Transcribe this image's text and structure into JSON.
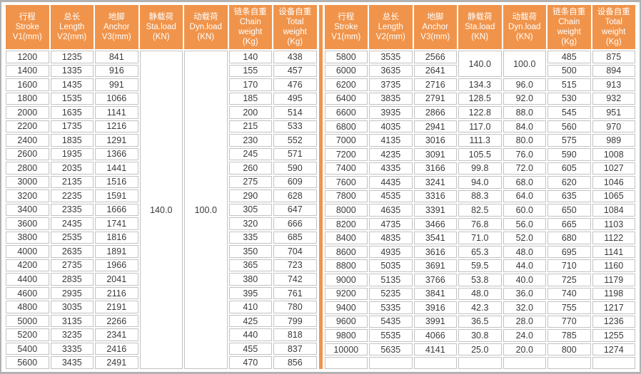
{
  "colors": {
    "header_orange": "#F0944B",
    "divider_orange": "#F0944B",
    "frame_border_gray": "#B2B2B2",
    "cell_border_gray": "#C2C2C2",
    "cell_background": "#FFFFFF",
    "data_text": "#3A3A3A",
    "header_text": "#FFFFFF"
  },
  "chart_data": {
    "type": "table",
    "header_columns": [
      {
        "lines": [
          "行程",
          "Stroke",
          "V1(mm)"
        ]
      },
      {
        "lines": [
          "总长",
          "Length",
          "V2(mm)"
        ]
      },
      {
        "lines": [
          "地脚",
          "Anchor",
          "V3(mm)"
        ]
      },
      {
        "lines": [
          "静载荷",
          "Sta.load",
          "(KN)"
        ]
      },
      {
        "lines": [
          "动载荷",
          "Dyn.load",
          "(KN)"
        ]
      },
      {
        "lines": [
          "链条自重",
          "Chain",
          "weight",
          "(Kg)"
        ]
      },
      {
        "lines": [
          "设备自重",
          "Total",
          "weight",
          "(Kg)"
        ]
      }
    ],
    "left_table": {
      "merged": {
        "sta_load": "140.0",
        "dyn_load": "100.0",
        "rowspan": 23
      },
      "rows": [
        [
          "1200",
          "1235",
          "841",
          "@sta",
          "@dyn",
          "140",
          "438"
        ],
        [
          "1400",
          "1335",
          "916",
          "@skip",
          "@skip",
          "155",
          "457"
        ],
        [
          "1600",
          "1435",
          "991",
          "@skip",
          "@skip",
          "170",
          "476"
        ],
        [
          "1800",
          "1535",
          "1066",
          "@skip",
          "@skip",
          "185",
          "495"
        ],
        [
          "2000",
          "1635",
          "1141",
          "@skip",
          "@skip",
          "200",
          "514"
        ],
        [
          "2200",
          "1735",
          "1216",
          "@skip",
          "@skip",
          "215",
          "533"
        ],
        [
          "2400",
          "1835",
          "1291",
          "@skip",
          "@skip",
          "230",
          "552"
        ],
        [
          "2600",
          "1935",
          "1366",
          "@skip",
          "@skip",
          "245",
          "571"
        ],
        [
          "2800",
          "2035",
          "1441",
          "@skip",
          "@skip",
          "260",
          "590"
        ],
        [
          "3000",
          "2135",
          "1516",
          "@skip",
          "@skip",
          "275",
          "609"
        ],
        [
          "3200",
          "2235",
          "1591",
          "@skip",
          "@skip",
          "290",
          "628"
        ],
        [
          "3400",
          "2335",
          "1666",
          "@skip",
          "@skip",
          "305",
          "647"
        ],
        [
          "3600",
          "2435",
          "1741",
          "@skip",
          "@skip",
          "320",
          "666"
        ],
        [
          "3800",
          "2535",
          "1816",
          "@skip",
          "@skip",
          "335",
          "685"
        ],
        [
          "4000",
          "2635",
          "1891",
          "@skip",
          "@skip",
          "350",
          "704"
        ],
        [
          "4200",
          "2735",
          "1966",
          "@skip",
          "@skip",
          "365",
          "723"
        ],
        [
          "4400",
          "2835",
          "2041",
          "@skip",
          "@skip",
          "380",
          "742"
        ],
        [
          "4600",
          "2935",
          "2116",
          "@skip",
          "@skip",
          "395",
          "761"
        ],
        [
          "4800",
          "3035",
          "2191",
          "@skip",
          "@skip",
          "410",
          "780"
        ],
        [
          "5000",
          "3135",
          "2266",
          "@skip",
          "@skip",
          "425",
          "799"
        ],
        [
          "5200",
          "3235",
          "2341",
          "@skip",
          "@skip",
          "440",
          "818"
        ],
        [
          "5400",
          "3335",
          "2416",
          "@skip",
          "@skip",
          "455",
          "837"
        ],
        [
          "5600",
          "3435",
          "2491",
          "@skip",
          "@skip",
          "470",
          "856"
        ]
      ]
    },
    "right_table": {
      "merged": {
        "sta_load": "140.0",
        "dyn_load": "100.0",
        "rowspan": 2
      },
      "rows": [
        [
          "5800",
          "3535",
          "2566",
          "@sta",
          "@dyn",
          "485",
          "875"
        ],
        [
          "6000",
          "3635",
          "2641",
          "@skip",
          "@skip",
          "500",
          "894"
        ],
        [
          "6200",
          "3735",
          "2716",
          "134.3",
          "96.0",
          "515",
          "913"
        ],
        [
          "6400",
          "3835",
          "2791",
          "128.5",
          "92.0",
          "530",
          "932"
        ],
        [
          "6600",
          "3935",
          "2866",
          "122.8",
          "88.0",
          "545",
          "951"
        ],
        [
          "6800",
          "4035",
          "2941",
          "117.0",
          "84.0",
          "560",
          "970"
        ],
        [
          "7000",
          "4135",
          "3016",
          "111.3",
          "80.0",
          "575",
          "989"
        ],
        [
          "7200",
          "4235",
          "3091",
          "105.5",
          "76.0",
          "590",
          "1008"
        ],
        [
          "7400",
          "4335",
          "3166",
          "99.8",
          "72.0",
          "605",
          "1027"
        ],
        [
          "7600",
          "4435",
          "3241",
          "94.0",
          "68.0",
          "620",
          "1046"
        ],
        [
          "7800",
          "4535",
          "3316",
          "88.3",
          "64.0",
          "635",
          "1065"
        ],
        [
          "8000",
          "4635",
          "3391",
          "82.5",
          "60.0",
          "650",
          "1084"
        ],
        [
          "8200",
          "4735",
          "3466",
          "76.8",
          "56.0",
          "665",
          "1103"
        ],
        [
          "8400",
          "4835",
          "3541",
          "71.0",
          "52.0",
          "680",
          "1122"
        ],
        [
          "8600",
          "4935",
          "3616",
          "65.3",
          "48.0",
          "695",
          "1141"
        ],
        [
          "8800",
          "5035",
          "3691",
          "59.5",
          "44.0",
          "710",
          "1160"
        ],
        [
          "9000",
          "5135",
          "3766",
          "53.8",
          "40.0",
          "725",
          "1179"
        ],
        [
          "9200",
          "5235",
          "3841",
          "48.0",
          "36.0",
          "740",
          "1198"
        ],
        [
          "9400",
          "5335",
          "3916",
          "42.3",
          "32.0",
          "755",
          "1217"
        ],
        [
          "9600",
          "5435",
          "3991",
          "36.5",
          "28.0",
          "770",
          "1236"
        ],
        [
          "9800",
          "5535",
          "4066",
          "30.8",
          "24.0",
          "785",
          "1255"
        ],
        [
          "10000",
          "5635",
          "4141",
          "25.0",
          "20.0",
          "800",
          "1274"
        ],
        [
          "",
          "",
          "",
          "",
          "",
          "",
          ""
        ]
      ]
    }
  }
}
